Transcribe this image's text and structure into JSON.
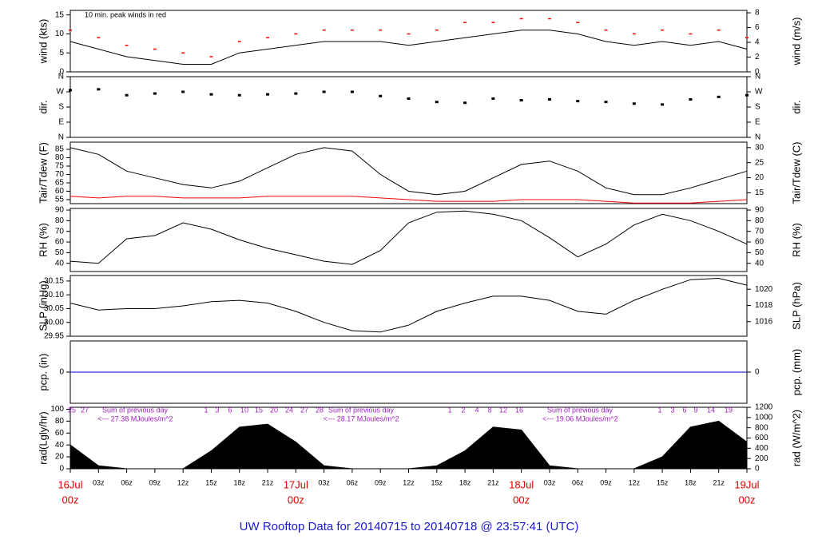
{
  "title": "UW Rooftop Data for 20140715  to  20140718 @ 23:57:41  (UTC)",
  "chart_data": [
    {
      "type": "line",
      "ylabel": "wind (kts)",
      "y2label": "wind (m/s)",
      "annotation": "10 min. peak winds in red",
      "ylim": [
        0,
        16.2
      ],
      "yticks": [
        0,
        5,
        10,
        15
      ],
      "y2lim": [
        0,
        8.33
      ],
      "y2ticks": [
        0,
        2,
        4,
        6,
        8
      ],
      "series": [
        {
          "type": "line",
          "color": "#000000",
          "values": [
            8,
            6,
            4,
            3,
            2,
            2,
            5,
            6,
            7,
            8,
            8,
            8,
            7,
            8,
            9,
            10,
            11,
            11,
            10,
            8,
            7,
            8,
            7,
            8,
            6
          ]
        },
        {
          "type": "dash",
          "color": "#ff0000",
          "values": [
            11,
            9,
            7,
            6,
            5,
            4,
            8,
            9,
            10,
            11,
            11,
            11,
            10,
            11,
            13,
            13,
            14,
            14,
            13,
            11,
            10,
            11,
            10,
            11,
            9
          ]
        }
      ]
    },
    {
      "type": "scatter",
      "ylabel": "dir.",
      "y2label": "dir.",
      "ylim": [
        0,
        360
      ],
      "yticks": [
        {
          "value": 360,
          "label": "N"
        },
        {
          "value": 270,
          "label": "W"
        },
        {
          "value": 180,
          "label": "S"
        },
        {
          "value": 90,
          "label": "E"
        },
        {
          "value": 0,
          "label": "N"
        }
      ],
      "y2lim": [
        0,
        360
      ],
      "y2ticks": [
        {
          "value": 360,
          "label": "N"
        },
        {
          "value": 270,
          "label": "W"
        },
        {
          "value": 180,
          "label": "S"
        },
        {
          "value": 90,
          "label": "E"
        },
        {
          "value": 0,
          "label": "N"
        }
      ],
      "series": [
        {
          "type": "scatter",
          "color": "#000000",
          "values": [
            280,
            285,
            250,
            260,
            270,
            255,
            250,
            255,
            260,
            270,
            270,
            245,
            230,
            210,
            205,
            230,
            220,
            225,
            215,
            210,
            200,
            195,
            225,
            240,
            250
          ]
        }
      ]
    },
    {
      "type": "line",
      "ylabel": "Tair/Tdew (F)",
      "y2label": "Tair/Tdew (C)",
      "ylim": [
        52.6,
        89.3
      ],
      "yticks": [
        55,
        60,
        65,
        70,
        75,
        80,
        85
      ],
      "y2lim": [
        11.4,
        31.8
      ],
      "y2ticks": [
        15,
        20,
        25,
        30
      ],
      "series": [
        {
          "type": "line",
          "color": "#000000",
          "values": [
            86,
            82,
            72,
            68,
            64,
            62,
            66,
            74,
            82,
            86,
            84,
            70,
            60,
            58,
            60,
            68,
            76,
            78,
            72,
            62,
            58,
            58,
            62,
            67,
            72
          ]
        },
        {
          "type": "line",
          "color": "#ff0000",
          "values": [
            57,
            56,
            57,
            57,
            56,
            56,
            56,
            57,
            57,
            57,
            57,
            56,
            55,
            54,
            54,
            54,
            55,
            55,
            55,
            54,
            53,
            53,
            53,
            54,
            55
          ]
        }
      ]
    },
    {
      "type": "line",
      "ylabel": "RH (%)",
      "y2label": "RH (%)",
      "ylim": [
        32.3,
        91.5
      ],
      "yticks": [
        40,
        50,
        60,
        70,
        80,
        90
      ],
      "y2lim": [
        32.3,
        91.5
      ],
      "y2ticks": [
        40,
        50,
        60,
        70,
        80,
        90
      ],
      "series": [
        {
          "type": "line",
          "color": "#000000",
          "values": [
            42,
            40,
            63,
            66,
            78,
            72,
            62,
            54,
            48,
            42,
            39,
            52,
            78,
            88,
            89,
            86,
            80,
            64,
            46,
            58,
            76,
            86,
            80,
            70,
            58
          ]
        }
      ]
    },
    {
      "type": "line",
      "ylabel": "SLP (inHg)",
      "y2label": "SLP (hPa)",
      "ylim": [
        29.95,
        30.17
      ],
      "yticks": [
        29.95,
        {
          "value": 30,
          "label": "30.00"
        },
        30.05,
        {
          "value": 30.1,
          "label": "30.10"
        },
        30.15
      ],
      "y2lim": [
        1014.2,
        1021.7
      ],
      "y2ticks": [
        1016,
        1018,
        1020
      ],
      "series": [
        {
          "type": "line",
          "color": "#000000",
          "values": [
            30.07,
            30.045,
            30.05,
            30.05,
            30.06,
            30.075,
            30.08,
            30.07,
            30.04,
            30.0,
            29.97,
            29.965,
            29.99,
            30.04,
            30.07,
            30.095,
            30.095,
            30.08,
            30.04,
            30.03,
            30.08,
            30.12,
            30.155,
            30.16,
            30.135
          ]
        }
      ]
    },
    {
      "type": "line",
      "ylabel": "pcp. (in)",
      "y2label": "pcp. (mm)",
      "ylim": [
        -1,
        1
      ],
      "yticks": [
        0
      ],
      "y2lim": [
        -1,
        1
      ],
      "y2ticks": [
        0
      ],
      "series": [
        {
          "type": "line",
          "color": "#0000cc",
          "values": [
            0,
            0,
            0,
            0,
            0,
            0,
            0,
            0,
            0,
            0,
            0,
            0,
            0,
            0,
            0,
            0,
            0,
            0,
            0,
            0,
            0,
            0,
            0,
            0,
            0
          ]
        }
      ]
    },
    {
      "type": "area",
      "ylabel": "rad(Lgly/hr)",
      "y2label": "rad (W/m^2)",
      "ylim": [
        0,
        103.3
      ],
      "yticks": [
        0,
        20,
        40,
        60,
        80,
        100
      ],
      "y2lim": [
        0,
        1200
      ],
      "y2ticks": [
        0,
        200,
        400,
        600,
        800,
        1000,
        1200
      ],
      "categories": [
        "00z",
        "03z",
        "06z",
        "09z",
        "12z",
        "15z",
        "18z",
        "21z",
        "00z",
        "03z",
        "06z",
        "09z",
        "12z",
        "15z",
        "18z",
        "21z",
        "00z",
        "03z",
        "06z",
        "09z",
        "12z",
        "15z",
        "18z",
        "21z",
        "00z"
      ],
      "day_labels": [
        "16Jul",
        "17Jul",
        "18Jul",
        "19Jul"
      ],
      "notes": [
        {
          "label": "Sum of previous day",
          "value": "<--- 27.38 MJoules/m^2"
        },
        {
          "label": "Sum of previous day",
          "value": "<--- 28.17 MJoules/m^2"
        },
        {
          "label": "Sum of previous day",
          "value": "<--- 19.06 MJoules/m^2"
        }
      ],
      "hour_labels": [
        [
          "25",
          "27"
        ],
        [
          "1",
          "3",
          "6",
          "10",
          "15",
          "20",
          "24",
          "27",
          "28"
        ],
        [
          "1",
          "2",
          "4",
          "8",
          "12",
          "16"
        ],
        [
          "1",
          "3",
          "6",
          "9",
          "14",
          "19"
        ]
      ],
      "series": [
        {
          "type": "area",
          "color": "#000000",
          "values": [
            40,
            5,
            0,
            0,
            0,
            30,
            70,
            75,
            45,
            5,
            0,
            0,
            0,
            5,
            30,
            70,
            65,
            5,
            0,
            0,
            0,
            20,
            70,
            80,
            45
          ]
        }
      ]
    }
  ]
}
